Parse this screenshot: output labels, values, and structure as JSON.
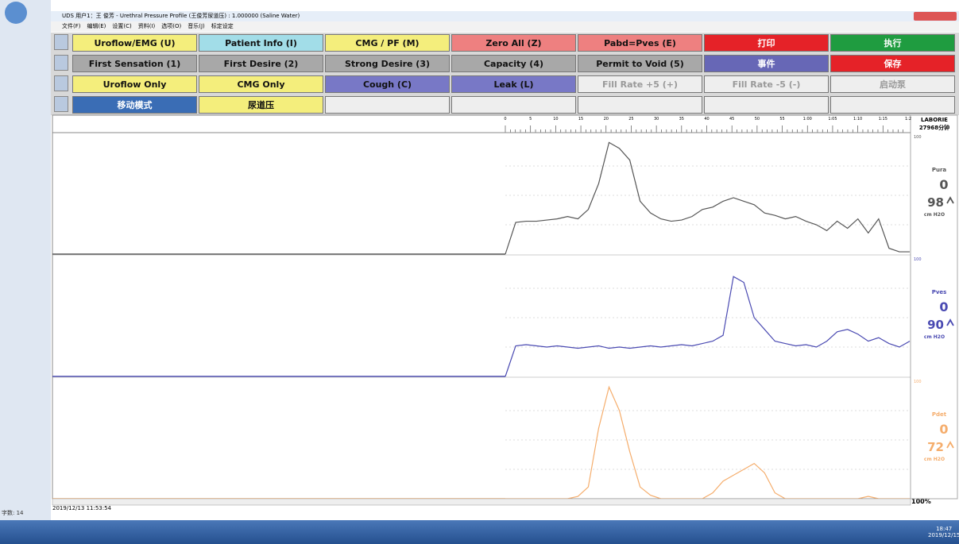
{
  "window": {
    "title": "UDS 用户1：王 俊芳 - Urethral Pressure Profile (王俊芳尿道压) : 1.000000 (Saline Water)",
    "menu": [
      "文件(F)",
      "编辑(E)",
      "设置(C)",
      "资料(I)",
      "选项(O)",
      "音乐(J)",
      "标定设定"
    ]
  },
  "buttons": [
    [
      {
        "label": "Uroflow/EMG (U)",
        "color": "#f4ee7c"
      },
      {
        "label": "Patient Info (I)",
        "color": "#a2dde8"
      },
      {
        "label": "CMG / PF (M)",
        "color": "#f4ee7c"
      },
      {
        "label": "Zero All (Z)",
        "color": "#ee8080"
      },
      {
        "label": "Pabd=Pves (E)",
        "color": "#ee8080"
      },
      {
        "label": "打印",
        "color": "#e52228"
      },
      {
        "label": "执行",
        "color": "#1f9c40"
      }
    ],
    [
      {
        "label": "First Sensation (1)",
        "color": "#a8a8a8"
      },
      {
        "label": "First Desire (2)",
        "color": "#a8a8a8"
      },
      {
        "label": "Strong Desire (3)",
        "color": "#a8a8a8"
      },
      {
        "label": "Capacity (4)",
        "color": "#a8a8a8"
      },
      {
        "label": "Permit to Void (5)",
        "color": "#a8a8a8"
      },
      {
        "label": "事件",
        "color": "#6767b6"
      },
      {
        "label": "保存",
        "color": "#e52228"
      }
    ],
    [
      {
        "label": "Uroflow Only",
        "color": "#f4ee7c"
      },
      {
        "label": "CMG Only",
        "color": "#f4ee7c"
      },
      {
        "label": "Cough (C)",
        "color": "#7878c6"
      },
      {
        "label": "Leak (L)",
        "color": "#7878c6"
      },
      {
        "label": "Fill Rate +5 (+)",
        "color": "#eeeeee"
      },
      {
        "label": "Fill Rate -5 (-)",
        "color": "#eeeeee"
      },
      {
        "label": "启动泵",
        "color": "#eeeeee"
      }
    ],
    [
      {
        "label": "移动模式",
        "color": "#3a6db5"
      },
      {
        "label": "尿道压",
        "color": "#f4ee7c"
      }
    ]
  ],
  "time_scale": [
    "0",
    "5",
    "10",
    "15",
    "20",
    "25",
    "30",
    "35",
    "40",
    "45",
    "50",
    "55",
    "1:00",
    "1:05",
    "1:10",
    "1:15",
    "1:2"
  ],
  "right_panel": {
    "brand": "LABORIE",
    "duration": "27968分钟"
  },
  "channels": [
    {
      "name": "Pura",
      "scale_top": "100",
      "zero": "0",
      "value": "98",
      "unit": "cm H2O",
      "color": "#555555",
      "trace": [
        0,
        27,
        28,
        28,
        29,
        30,
        32,
        30,
        38,
        60,
        95,
        90,
        80,
        45,
        35,
        30,
        28,
        29,
        32,
        38,
        40,
        45,
        48,
        45,
        42,
        35,
        33,
        30,
        32,
        28,
        25,
        20,
        28,
        22,
        30,
        18,
        30,
        5,
        2,
        2
      ]
    },
    {
      "name": "Pves",
      "scale_top": "100",
      "zero": "0",
      "value": "90",
      "unit": "cm H2O",
      "color": "#4a4ab2",
      "trace": [
        0,
        26,
        27,
        26,
        25,
        26,
        25,
        24,
        25,
        26,
        24,
        25,
        24,
        25,
        26,
        25,
        26,
        27,
        26,
        28,
        30,
        35,
        85,
        80,
        50,
        40,
        30,
        28,
        26,
        27,
        25,
        30,
        38,
        40,
        36,
        30,
        33,
        28,
        25,
        30
      ]
    },
    {
      "name": "Pdet",
      "scale_top": "100",
      "zero": "0",
      "value": "72",
      "unit": "cm H2O",
      "color": "#f5ad6c",
      "trace": [
        0,
        0,
        0,
        0,
        0,
        0,
        0,
        2,
        10,
        60,
        95,
        75,
        40,
        10,
        3,
        0,
        0,
        0,
        0,
        0,
        5,
        15,
        20,
        25,
        30,
        22,
        5,
        0,
        0,
        0,
        0,
        0,
        0,
        0,
        0,
        2,
        0,
        0,
        0,
        0
      ]
    }
  ],
  "status": {
    "timestamp": "2019/12/13 11:53:54",
    "zoom": "100%",
    "word_count": "字数: 14"
  },
  "taskbar": {
    "time": "18:47",
    "date": "2019/12/15"
  }
}
